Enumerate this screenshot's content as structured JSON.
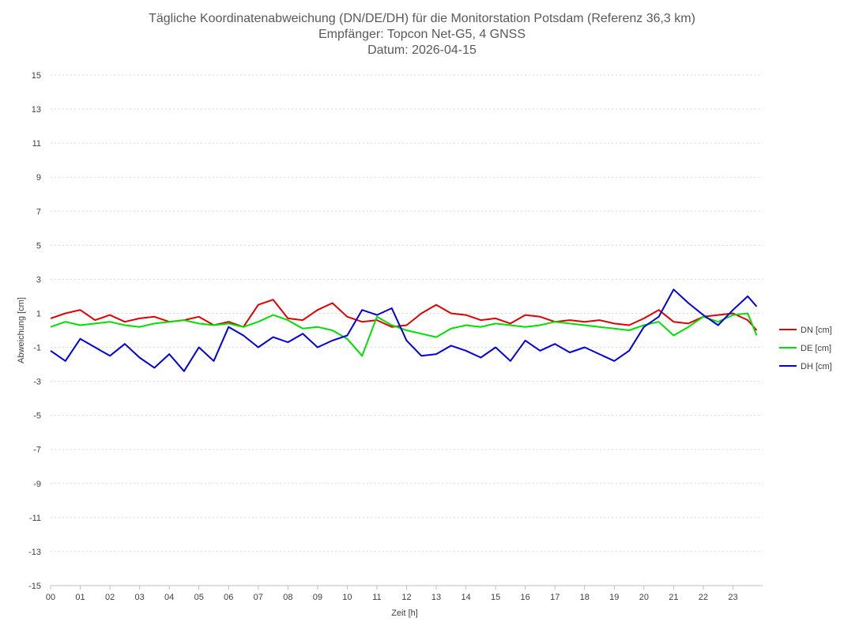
{
  "chart_data": {
    "type": "line",
    "title": [
      "Tägliche Koordinatenabweichung (DN/DE/DH) für die Monitorstation Potsdam (Referenz 36,3 km)",
      "Empfänger: Topcon Net-G5, 4 GNSS",
      "Datum: 2026-04-15"
    ],
    "xlabel": "Zeit [h]",
    "ylabel": "Abweichung [cm]",
    "xlim": [
      0,
      24
    ],
    "ylim": [
      -15,
      15
    ],
    "x_ticks": [
      "00",
      "01",
      "02",
      "03",
      "04",
      "05",
      "06",
      "07",
      "08",
      "09",
      "10",
      "11",
      "12",
      "13",
      "14",
      "15",
      "16",
      "17",
      "18",
      "19",
      "20",
      "21",
      "22",
      "23"
    ],
    "y_ticks": [
      15,
      13,
      11,
      9,
      7,
      5,
      3,
      1,
      -1,
      -3,
      -5,
      -7,
      -9,
      -11,
      -13,
      -15
    ],
    "grid": "horizontal dotted",
    "legend_position": "right",
    "x_hours": [
      0,
      0.5,
      1,
      1.5,
      2,
      2.5,
      3,
      3.5,
      4,
      4.5,
      5,
      5.5,
      6,
      6.5,
      7,
      7.5,
      8,
      8.5,
      9,
      9.5,
      10,
      10.5,
      11,
      11.5,
      12,
      12.5,
      13,
      13.5,
      14,
      14.5,
      15,
      15.5,
      16,
      16.5,
      17,
      17.5,
      18,
      18.5,
      19,
      19.5,
      20,
      20.5,
      21,
      21.5,
      22,
      22.5,
      23,
      23.5,
      23.8
    ],
    "series": [
      {
        "name": "DN [cm]",
        "color": "#e00000",
        "values": [
          0.7,
          1.0,
          1.2,
          0.6,
          0.9,
          0.5,
          0.7,
          0.8,
          0.5,
          0.6,
          0.8,
          0.3,
          0.5,
          0.2,
          1.5,
          1.8,
          0.7,
          0.6,
          1.2,
          1.6,
          0.8,
          0.5,
          0.6,
          0.2,
          0.3,
          1.0,
          1.5,
          1.0,
          0.9,
          0.6,
          0.7,
          0.4,
          0.9,
          0.8,
          0.5,
          0.6,
          0.5,
          0.6,
          0.4,
          0.3,
          0.7,
          1.2,
          0.5,
          0.4,
          0.8,
          0.9,
          1.0,
          0.6,
          0.0
        ]
      },
      {
        "name": "DE [cm]",
        "color": "#00e000",
        "values": [
          0.2,
          0.5,
          0.3,
          0.4,
          0.5,
          0.3,
          0.2,
          0.4,
          0.5,
          0.6,
          0.4,
          0.3,
          0.4,
          0.2,
          0.5,
          0.9,
          0.6,
          0.1,
          0.2,
          0.0,
          -0.5,
          -1.5,
          0.8,
          0.3,
          0.0,
          -0.2,
          -0.4,
          0.1,
          0.3,
          0.2,
          0.4,
          0.3,
          0.2,
          0.3,
          0.5,
          0.4,
          0.3,
          0.2,
          0.1,
          0.0,
          0.3,
          0.5,
          -0.3,
          0.2,
          0.8,
          0.5,
          0.9,
          1.0,
          -0.3
        ]
      },
      {
        "name": "DH [cm]",
        "color": "#0000e0",
        "values": [
          -1.2,
          -1.8,
          -0.5,
          -1.0,
          -1.5,
          -0.8,
          -1.6,
          -2.2,
          -1.4,
          -2.4,
          -1.0,
          -1.8,
          0.2,
          -0.3,
          -1.0,
          -0.4,
          -0.7,
          -0.2,
          -1.0,
          -0.6,
          -0.3,
          1.2,
          0.9,
          1.3,
          -0.6,
          -1.5,
          -1.4,
          -0.9,
          -1.2,
          -1.6,
          -1.0,
          -1.8,
          -0.6,
          -1.2,
          -0.8,
          -1.3,
          -1.0,
          -1.4,
          -1.8,
          -1.2,
          0.2,
          0.8,
          2.4,
          1.6,
          0.9,
          0.3,
          1.2,
          2.0,
          1.4
        ]
      }
    ]
  }
}
